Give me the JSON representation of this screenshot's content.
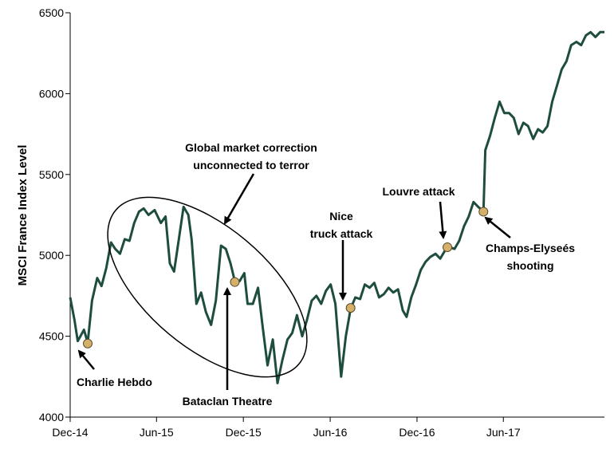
{
  "chart_data": {
    "type": "line",
    "title": "",
    "xlabel": "",
    "ylabel": "MSCI France Index Level",
    "ylim": [
      4000,
      6500
    ],
    "xlim": [
      "2014-12-01",
      "2017-12-31"
    ],
    "grid": false,
    "legend": "none",
    "line_color": "#1e4d3f",
    "marker_color": "#d4b06a",
    "yticks": [
      4000,
      4500,
      5000,
      5500,
      6000,
      6500
    ],
    "ytick_labels": [
      "4000",
      "4500",
      "5000",
      "5500",
      "6000",
      "6500"
    ],
    "xticks": [
      "2014-12-01",
      "2015-06-01",
      "2015-12-01",
      "2016-06-01",
      "2016-12-01",
      "2017-06-01"
    ],
    "xtick_labels": [
      "Dec-14",
      "Jun-15",
      "Dec-15",
      "Jun-16",
      "Dec-16",
      "Jun-17"
    ],
    "series": [
      {
        "name": "",
        "points": [
          [
            "2014-12-01",
            4740
          ],
          [
            "2014-12-10",
            4600
          ],
          [
            "2014-12-17",
            4470
          ],
          [
            "2014-12-30",
            4540
          ],
          [
            "2015-01-07",
            4460
          ],
          [
            "2015-01-16",
            4720
          ],
          [
            "2015-01-27",
            4860
          ],
          [
            "2015-02-05",
            4810
          ],
          [
            "2015-02-15",
            4920
          ],
          [
            "2015-02-25",
            5080
          ],
          [
            "2015-03-06",
            5040
          ],
          [
            "2015-03-16",
            5010
          ],
          [
            "2015-03-26",
            5100
          ],
          [
            "2015-04-05",
            5090
          ],
          [
            "2015-04-15",
            5200
          ],
          [
            "2015-04-25",
            5270
          ],
          [
            "2015-05-05",
            5290
          ],
          [
            "2015-05-15",
            5250
          ],
          [
            "2015-05-28",
            5280
          ],
          [
            "2015-06-10",
            5200
          ],
          [
            "2015-06-20",
            5240
          ],
          [
            "2015-06-29",
            4950
          ],
          [
            "2015-07-08",
            4900
          ],
          [
            "2015-07-18",
            5100
          ],
          [
            "2015-07-28",
            5300
          ],
          [
            "2015-08-07",
            5250
          ],
          [
            "2015-08-14",
            5100
          ],
          [
            "2015-08-24",
            4700
          ],
          [
            "2015-09-03",
            4770
          ],
          [
            "2015-09-13",
            4650
          ],
          [
            "2015-09-24",
            4570
          ],
          [
            "2015-10-04",
            4720
          ],
          [
            "2015-10-15",
            5060
          ],
          [
            "2015-10-25",
            5040
          ],
          [
            "2015-11-04",
            4950
          ],
          [
            "2015-11-13",
            4840
          ],
          [
            "2015-11-23",
            4840
          ],
          [
            "2015-12-03",
            4890
          ],
          [
            "2015-12-10",
            4700
          ],
          [
            "2015-12-21",
            4700
          ],
          [
            "2016-01-01",
            4800
          ],
          [
            "2016-01-11",
            4550
          ],
          [
            "2016-01-21",
            4320
          ],
          [
            "2016-02-01",
            4480
          ],
          [
            "2016-02-11",
            4210
          ],
          [
            "2016-02-21",
            4350
          ],
          [
            "2016-03-03",
            4480
          ],
          [
            "2016-03-13",
            4520
          ],
          [
            "2016-03-23",
            4630
          ],
          [
            "2016-04-03",
            4500
          ],
          [
            "2016-04-13",
            4600
          ],
          [
            "2016-04-23",
            4720
          ],
          [
            "2016-05-03",
            4750
          ],
          [
            "2016-05-13",
            4700
          ],
          [
            "2016-05-23",
            4780
          ],
          [
            "2016-06-02",
            4820
          ],
          [
            "2016-06-12",
            4700
          ],
          [
            "2016-06-24",
            4250
          ],
          [
            "2016-07-04",
            4500
          ],
          [
            "2016-07-14",
            4670
          ],
          [
            "2016-07-24",
            4740
          ],
          [
            "2016-08-03",
            4730
          ],
          [
            "2016-08-13",
            4820
          ],
          [
            "2016-08-23",
            4800
          ],
          [
            "2016-09-02",
            4830
          ],
          [
            "2016-09-12",
            4740
          ],
          [
            "2016-09-22",
            4760
          ],
          [
            "2016-10-02",
            4800
          ],
          [
            "2016-10-12",
            4770
          ],
          [
            "2016-10-22",
            4790
          ],
          [
            "2016-11-01",
            4660
          ],
          [
            "2016-11-09",
            4620
          ],
          [
            "2016-11-19",
            4740
          ],
          [
            "2016-11-29",
            4820
          ],
          [
            "2016-12-09",
            4910
          ],
          [
            "2016-12-19",
            4960
          ],
          [
            "2016-12-29",
            4990
          ],
          [
            "2017-01-09",
            5010
          ],
          [
            "2017-01-19",
            4980
          ],
          [
            "2017-01-29",
            5030
          ],
          [
            "2017-02-08",
            5050
          ],
          [
            "2017-02-18",
            5040
          ],
          [
            "2017-02-28",
            5090
          ],
          [
            "2017-03-10",
            5180
          ],
          [
            "2017-03-20",
            5240
          ],
          [
            "2017-03-30",
            5330
          ],
          [
            "2017-04-09",
            5300
          ],
          [
            "2017-04-20",
            5270
          ],
          [
            "2017-04-24",
            5650
          ],
          [
            "2017-05-04",
            5740
          ],
          [
            "2017-05-14",
            5850
          ],
          [
            "2017-05-24",
            5950
          ],
          [
            "2017-06-03",
            5880
          ],
          [
            "2017-06-13",
            5880
          ],
          [
            "2017-06-23",
            5850
          ],
          [
            "2017-07-03",
            5750
          ],
          [
            "2017-07-13",
            5820
          ],
          [
            "2017-07-23",
            5800
          ],
          [
            "2017-08-03",
            5720
          ],
          [
            "2017-08-13",
            5780
          ],
          [
            "2017-08-23",
            5760
          ],
          [
            "2017-09-02",
            5800
          ],
          [
            "2017-09-12",
            5950
          ],
          [
            "2017-09-22",
            6050
          ],
          [
            "2017-10-02",
            6150
          ],
          [
            "2017-10-12",
            6200
          ],
          [
            "2017-10-22",
            6300
          ],
          [
            "2017-11-02",
            6320
          ],
          [
            "2017-11-12",
            6300
          ],
          [
            "2017-11-22",
            6360
          ],
          [
            "2017-12-02",
            6380
          ],
          [
            "2017-12-12",
            6350
          ],
          [
            "2017-12-22",
            6380
          ],
          [
            "2017-12-31",
            6380
          ]
        ]
      }
    ],
    "events": [
      {
        "id": "charlie-hebdo",
        "label_lines": [
          "Charlie Hebdo"
        ],
        "x": "2015-01-07",
        "y": 4455
      },
      {
        "id": "bataclan",
        "label_lines": [
          "Bataclan Theatre"
        ],
        "x": "2015-11-13",
        "y": 4835
      },
      {
        "id": "nice",
        "label_lines": [
          "Nice",
          "truck attack"
        ],
        "x": "2016-07-14",
        "y": 4675
      },
      {
        "id": "louvre",
        "label_lines": [
          "Louvre attack"
        ],
        "x": "2017-02-03",
        "y": 5050
      },
      {
        "id": "champs-elysees",
        "label_lines": [
          "Champs-Elyseés",
          "shooting"
        ],
        "x": "2017-04-20",
        "y": 5270
      }
    ],
    "annotations": [
      {
        "id": "market-correction",
        "label_lines": [
          "Global market correction",
          "unconnected to terror"
        ]
      }
    ]
  }
}
